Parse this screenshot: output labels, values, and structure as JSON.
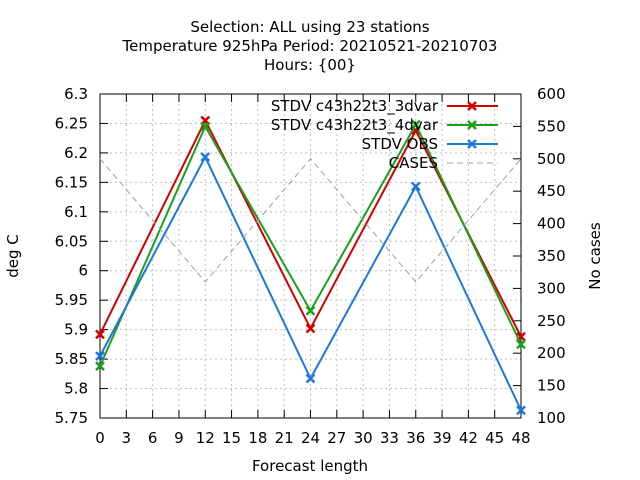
{
  "chart_data": {
    "type": "line",
    "title_lines": [
      "Selection: ALL using    23 stations",
      "Temperature 925hPa   Period: 20210521-20210703",
      "Hours: {00}"
    ],
    "xlabel": "Forecast length",
    "ylabel": "deg C",
    "y2label": "No cases",
    "x_ticks": [
      0,
      3,
      6,
      9,
      12,
      15,
      18,
      21,
      24,
      27,
      30,
      33,
      36,
      39,
      42,
      45,
      48
    ],
    "xlim": [
      0,
      48
    ],
    "ylim": [
      5.75,
      6.3
    ],
    "y_ticks": [
      "5.75",
      "5.8",
      "5.85",
      "5.9",
      "5.95",
      "6",
      "6.05",
      "6.1",
      "6.15",
      "6.2",
      "6.25",
      "6.3"
    ],
    "y2lim": [
      100,
      600
    ],
    "y2_ticks": [
      "100",
      "150",
      "200",
      "250",
      "300",
      "350",
      "400",
      "450",
      "500",
      "550",
      "600"
    ],
    "grid": true,
    "legend_position": "top-right",
    "series": [
      {
        "name": "STDV c43h22t3_3dvar",
        "axis": "y1",
        "color": "#d40000",
        "style": "solid",
        "marker": "x",
        "x": [
          0,
          12,
          24,
          36,
          48
        ],
        "y": [
          5.892,
          6.255,
          5.902,
          6.238,
          5.888
        ]
      },
      {
        "name": "STDV c43h22t3_4dvar",
        "axis": "y1",
        "color": "#1aa01a",
        "style": "solid",
        "marker": "x",
        "x": [
          0,
          12,
          24,
          36,
          48
        ],
        "y": [
          5.838,
          6.245,
          5.932,
          6.248,
          5.875
        ]
      },
      {
        "name": "STDV OBS",
        "axis": "y1",
        "color": "#1e78dc",
        "style": "solid",
        "marker": "x",
        "x": [
          0,
          12,
          24,
          36,
          48
        ],
        "y": [
          5.855,
          6.193,
          5.817,
          6.143,
          5.763
        ]
      },
      {
        "name": "CASES",
        "axis": "y2",
        "color": "#a0a0a0",
        "style": "dashed",
        "marker": "none",
        "x": [
          0,
          12,
          24,
          36,
          48
        ],
        "y": [
          500,
          310,
          500,
          310,
          500
        ]
      }
    ]
  }
}
